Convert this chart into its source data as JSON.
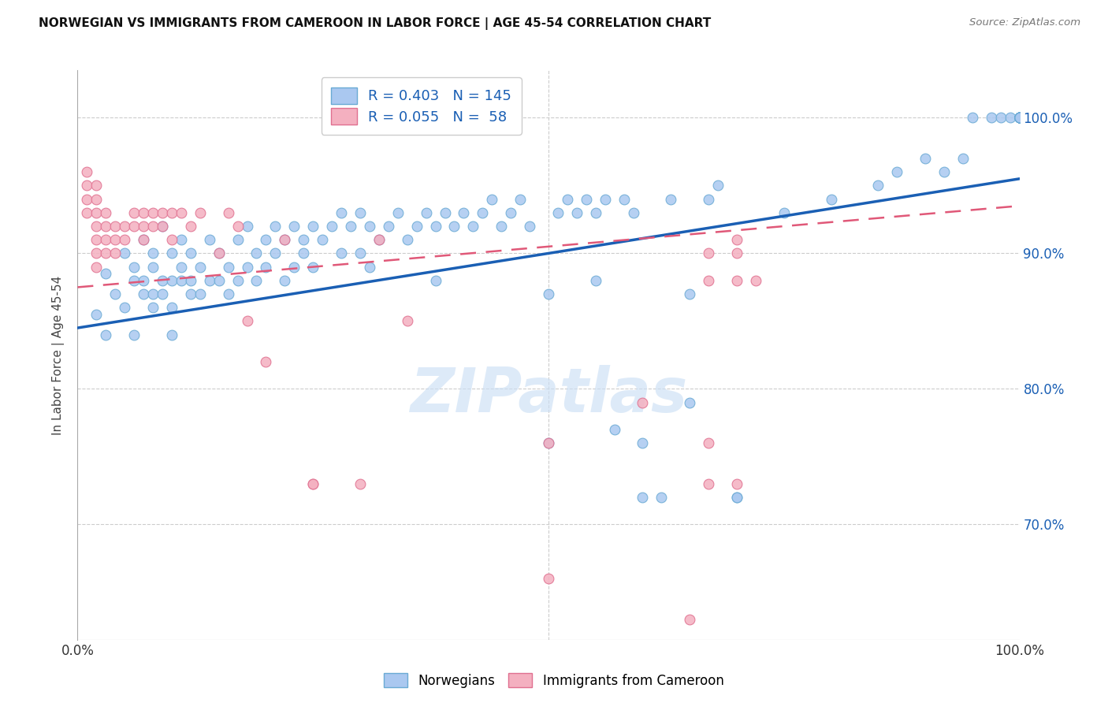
{
  "title": "NORWEGIAN VS IMMIGRANTS FROM CAMEROON IN LABOR FORCE | AGE 45-54 CORRELATION CHART",
  "source": "Source: ZipAtlas.com",
  "ylabel": "In Labor Force | Age 45-54",
  "ytick_labels": [
    "100.0%",
    "90.0%",
    "80.0%",
    "70.0%"
  ],
  "ytick_positions": [
    1.0,
    0.9,
    0.8,
    0.7
  ],
  "xlim": [
    0.0,
    1.0
  ],
  "ylim": [
    0.615,
    1.035
  ],
  "blue_color": "#aac8f0",
  "blue_edge": "#6aaad4",
  "blue_line": "#1a5fb4",
  "pink_color": "#f4b0c0",
  "pink_edge": "#e07090",
  "pink_line": "#e05878",
  "legend_blue_R": "R = 0.403",
  "legend_blue_N": "N = 145",
  "legend_pink_R": "R = 0.055",
  "legend_pink_N": "N =  58",
  "blue_trend_x": [
    0.0,
    1.0
  ],
  "blue_trend_y": [
    0.845,
    0.955
  ],
  "pink_trend_x": [
    0.0,
    1.0
  ],
  "pink_trend_y": [
    0.875,
    0.935
  ],
  "blue_scatter_x": [
    0.02,
    0.03,
    0.03,
    0.04,
    0.05,
    0.05,
    0.06,
    0.06,
    0.06,
    0.07,
    0.07,
    0.07,
    0.08,
    0.08,
    0.08,
    0.08,
    0.09,
    0.09,
    0.09,
    0.1,
    0.1,
    0.1,
    0.1,
    0.11,
    0.11,
    0.11,
    0.12,
    0.12,
    0.12,
    0.13,
    0.13,
    0.14,
    0.14,
    0.15,
    0.15,
    0.16,
    0.16,
    0.17,
    0.17,
    0.18,
    0.18,
    0.19,
    0.19,
    0.2,
    0.2,
    0.21,
    0.21,
    0.22,
    0.22,
    0.23,
    0.23,
    0.24,
    0.24,
    0.25,
    0.25,
    0.26,
    0.27,
    0.28,
    0.28,
    0.29,
    0.3,
    0.3,
    0.31,
    0.31,
    0.32,
    0.33,
    0.34,
    0.35,
    0.36,
    0.37,
    0.38,
    0.38,
    0.39,
    0.4,
    0.41,
    0.42,
    0.43,
    0.44,
    0.45,
    0.46,
    0.47,
    0.48,
    0.5,
    0.51,
    0.52,
    0.53,
    0.54,
    0.55,
    0.56,
    0.57,
    0.58,
    0.59,
    0.6,
    0.62,
    0.63,
    0.65,
    0.67,
    0.68,
    0.7,
    0.5,
    0.55,
    0.6,
    0.65,
    0.7,
    0.75,
    0.8,
    0.85,
    0.87,
    0.9,
    0.92,
    0.94,
    0.95,
    0.97,
    0.98,
    0.99,
    1.0,
    1.0,
    1.0,
    1.0,
    1.0,
    1.0,
    1.0,
    1.0,
    1.0,
    1.0,
    1.0,
    1.0,
    1.0,
    1.0,
    1.0,
    1.0,
    1.0,
    1.0,
    1.0,
    1.0,
    1.0,
    1.0,
    1.0,
    1.0,
    1.0,
    1.0,
    1.0,
    1.0,
    1.0,
    1.0
  ],
  "blue_scatter_y": [
    0.855,
    0.885,
    0.84,
    0.87,
    0.86,
    0.9,
    0.89,
    0.88,
    0.84,
    0.91,
    0.88,
    0.87,
    0.89,
    0.87,
    0.9,
    0.86,
    0.88,
    0.87,
    0.92,
    0.9,
    0.88,
    0.86,
    0.84,
    0.91,
    0.89,
    0.88,
    0.87,
    0.9,
    0.88,
    0.89,
    0.87,
    0.91,
    0.88,
    0.9,
    0.88,
    0.89,
    0.87,
    0.91,
    0.88,
    0.92,
    0.89,
    0.9,
    0.88,
    0.91,
    0.89,
    0.92,
    0.9,
    0.91,
    0.88,
    0.92,
    0.89,
    0.91,
    0.9,
    0.92,
    0.89,
    0.91,
    0.92,
    0.93,
    0.9,
    0.92,
    0.93,
    0.9,
    0.92,
    0.89,
    0.91,
    0.92,
    0.93,
    0.91,
    0.92,
    0.93,
    0.92,
    0.88,
    0.93,
    0.92,
    0.93,
    0.92,
    0.93,
    0.94,
    0.92,
    0.93,
    0.94,
    0.92,
    0.76,
    0.93,
    0.94,
    0.93,
    0.94,
    0.93,
    0.94,
    0.77,
    0.94,
    0.93,
    0.72,
    0.72,
    0.94,
    0.79,
    0.94,
    0.95,
    0.72,
    0.87,
    0.88,
    0.76,
    0.87,
    0.72,
    0.93,
    0.94,
    0.95,
    0.96,
    0.97,
    0.96,
    0.97,
    1.0,
    1.0,
    1.0,
    1.0,
    1.0,
    1.0,
    1.0,
    1.0,
    1.0,
    1.0,
    1.0,
    1.0,
    1.0,
    1.0,
    1.0,
    1.0,
    1.0,
    1.0,
    1.0,
    1.0,
    1.0,
    1.0,
    1.0,
    1.0,
    1.0,
    1.0,
    1.0,
    1.0,
    1.0,
    1.0,
    1.0,
    1.0,
    1.0,
    1.0
  ],
  "pink_scatter_x": [
    0.01,
    0.01,
    0.01,
    0.01,
    0.02,
    0.02,
    0.02,
    0.02,
    0.02,
    0.02,
    0.02,
    0.03,
    0.03,
    0.03,
    0.03,
    0.04,
    0.04,
    0.04,
    0.05,
    0.05,
    0.06,
    0.06,
    0.07,
    0.07,
    0.07,
    0.08,
    0.08,
    0.09,
    0.09,
    0.1,
    0.1,
    0.11,
    0.12,
    0.13,
    0.15,
    0.16,
    0.17,
    0.18,
    0.22,
    0.25,
    0.5,
    0.5,
    0.67,
    0.67,
    0.67,
    0.67,
    0.7,
    0.7,
    0.7,
    0.7,
    0.72,
    0.2,
    0.25,
    0.3,
    0.32,
    0.35,
    0.6,
    0.65
  ],
  "pink_scatter_y": [
    0.96,
    0.95,
    0.94,
    0.93,
    0.95,
    0.94,
    0.93,
    0.92,
    0.91,
    0.9,
    0.89,
    0.93,
    0.92,
    0.91,
    0.9,
    0.92,
    0.91,
    0.9,
    0.92,
    0.91,
    0.93,
    0.92,
    0.93,
    0.92,
    0.91,
    0.93,
    0.92,
    0.93,
    0.92,
    0.93,
    0.91,
    0.93,
    0.92,
    0.93,
    0.9,
    0.93,
    0.92,
    0.85,
    0.91,
    0.73,
    0.76,
    0.66,
    0.9,
    0.88,
    0.76,
    0.73,
    0.73,
    0.91,
    0.88,
    0.9,
    0.88,
    0.82,
    0.73,
    0.73,
    0.91,
    0.85,
    0.79,
    0.63
  ]
}
